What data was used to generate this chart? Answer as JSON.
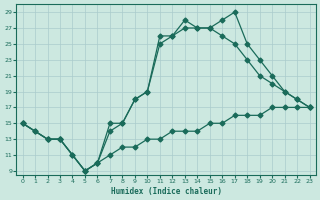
{
  "title": "",
  "xlabel": "Humidex (Indice chaleur)",
  "bg_color": "#cce8e0",
  "grid_color": "#aacccc",
  "line_color": "#1a6b5a",
  "xlim": [
    -0.5,
    23.5
  ],
  "ylim": [
    8.5,
    30
  ],
  "xticks": [
    0,
    1,
    2,
    3,
    4,
    5,
    6,
    7,
    8,
    9,
    10,
    11,
    12,
    13,
    14,
    15,
    16,
    17,
    18,
    19,
    20,
    21,
    22,
    23
  ],
  "yticks": [
    9,
    11,
    13,
    15,
    17,
    19,
    21,
    23,
    25,
    27,
    29
  ],
  "line1_x": [
    0,
    1,
    2,
    3,
    4,
    5,
    6,
    7,
    8,
    9,
    10,
    11,
    12,
    13,
    14,
    15,
    16,
    17,
    18,
    19,
    20,
    21,
    22,
    23
  ],
  "line1_y": [
    15,
    14,
    13,
    13,
    11,
    9,
    10,
    15,
    15,
    18,
    19,
    26,
    26,
    28,
    27,
    27,
    28,
    29,
    25,
    23,
    21,
    19,
    18,
    17
  ],
  "line2_x": [
    0,
    1,
    2,
    3,
    5,
    6,
    7,
    8,
    9,
    10,
    11,
    12,
    13,
    14,
    15,
    16,
    17,
    18,
    19,
    20,
    21,
    22,
    23
  ],
  "line2_y": [
    15,
    14,
    13,
    13,
    9,
    10,
    14,
    15,
    18,
    19,
    25,
    26,
    27,
    27,
    27,
    26,
    25,
    23,
    21,
    20,
    19,
    18,
    17
  ],
  "line3_x": [
    0,
    2,
    3,
    4,
    5,
    6,
    7,
    8,
    9,
    10,
    11,
    12,
    13,
    14,
    15,
    16,
    17,
    18,
    19,
    20,
    21,
    22,
    23
  ],
  "line3_y": [
    15,
    13,
    13,
    11,
    9,
    10,
    11,
    12,
    12,
    13,
    13,
    14,
    14,
    14,
    15,
    15,
    16,
    16,
    16,
    17,
    17,
    17,
    17
  ],
  "markersize": 2.5
}
